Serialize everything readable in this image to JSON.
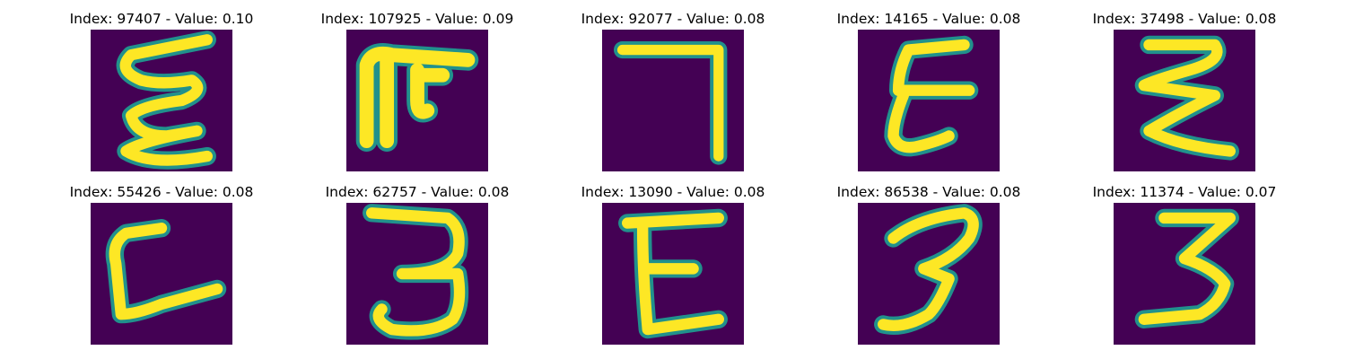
{
  "panels": [
    {
      "title": "Index: 97407 - Value: 0.10",
      "glyph": "squiggle-e-icon"
    },
    {
      "title": "Index: 107925 - Value: 0.09",
      "glyph": "rotated-m-icon"
    },
    {
      "title": "Index: 92077 - Value: 0.08",
      "glyph": "seven-icon"
    },
    {
      "title": "Index: 14165 - Value: 0.08",
      "glyph": "letter-e-icon"
    },
    {
      "title": "Index: 37498 - Value: 0.08",
      "glyph": "zigzag-e-icon"
    },
    {
      "title": "Index: 55426 - Value: 0.08",
      "glyph": "letter-c-icon"
    },
    {
      "title": "Index: 62757 - Value: 0.08",
      "glyph": "digit-three-icon"
    },
    {
      "title": "Index: 13090 - Value: 0.08",
      "glyph": "letter-e-icon"
    },
    {
      "title": "Index: 86538 - Value: 0.08",
      "glyph": "digit-three-icon"
    },
    {
      "title": "Index: 11374 - Value: 0.07",
      "glyph": "digit-three-icon"
    }
  ],
  "colors": {
    "background": "#440154",
    "stroke": "#fde725",
    "edge": "#21918c"
  }
}
